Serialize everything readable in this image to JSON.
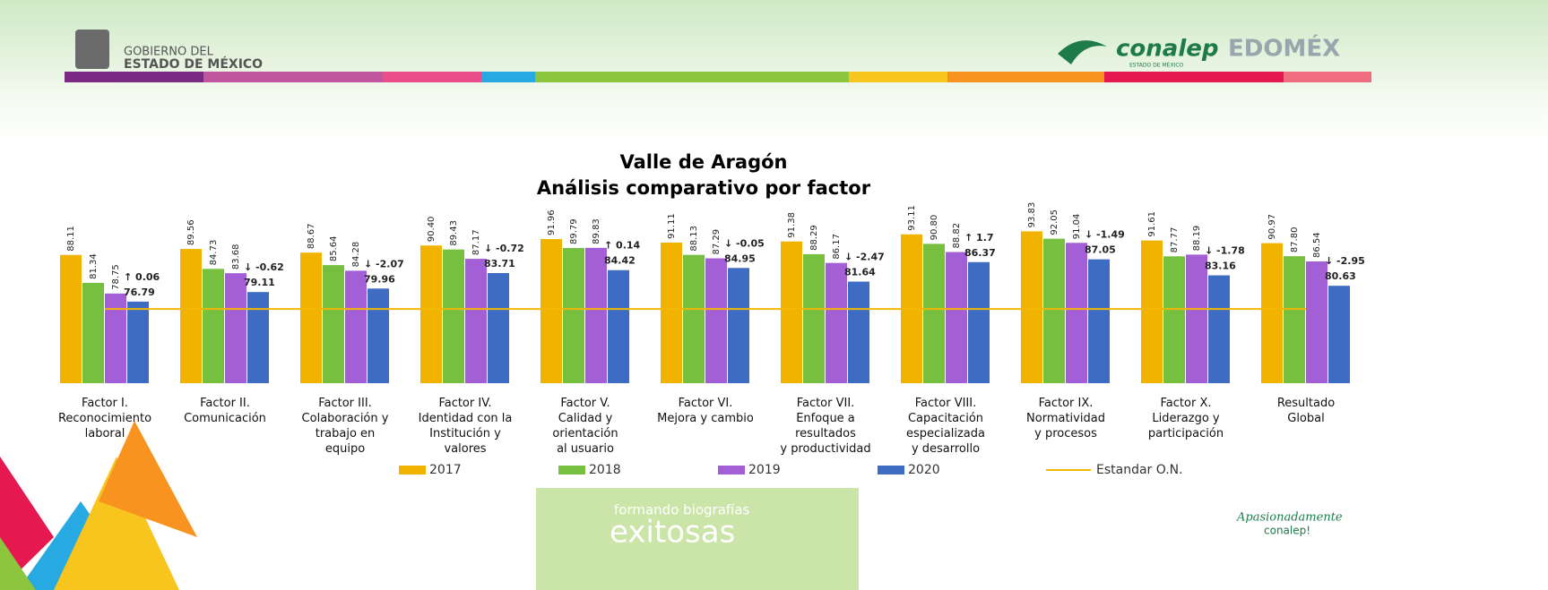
{
  "header": {
    "gov_line1": "GOBIERNO DEL",
    "gov_line2": "ESTADO DE MÉXICO",
    "conalep": "conalep",
    "conalep_sub": "ESTADO DE MÉXICO",
    "edomex": "EDOMÉX"
  },
  "footer": {
    "slogan1": "formando biografías",
    "slogan2": "exitosas",
    "signature1": "Apasionadamente",
    "signature2": "conalep!"
  },
  "chart_data": {
    "type": "bar",
    "title": "Valle de Aragón",
    "subtitle": "Análisis comparativo por factor",
    "categories": [
      "Factor I.\nReconocimiento\nlaboral",
      "Factor II.\nComunicación",
      "Factor III.\nColaboración y\ntrabajo en\nequipo",
      "Factor IV.\nIdentidad con la\nInstitución y\nvalores",
      "Factor V.\nCalidad y\norientación\nal usuario",
      "Factor VI.\nMejora y cambio",
      "Factor VII.\nEnfoque a\nresultados\ny productividad",
      "Factor VIII.\nCapacitación\nespecializada\ny desarrollo",
      "Factor IX.\nNormatividad\ny procesos",
      "Factor X.\nLiderazgo y\nparticipación",
      "Resultado\nGlobal"
    ],
    "series": [
      {
        "name": "2017",
        "color": "#f2b200",
        "values": [
          88.11,
          89.56,
          88.67,
          90.4,
          91.96,
          91.11,
          91.38,
          93.11,
          93.83,
          91.61,
          90.97
        ],
        "value_labels": [
          "88.11",
          "89.56",
          "88.67",
          "90.40",
          "91.96",
          "91.11",
          "91.38",
          "93.11",
          "93.83",
          "91.61",
          "90.97"
        ]
      },
      {
        "name": "2018",
        "color": "#76bf3f",
        "values": [
          81.34,
          84.73,
          85.64,
          89.43,
          89.79,
          88.13,
          88.29,
          90.8,
          92.05,
          87.77,
          87.8
        ],
        "value_labels": [
          "81.34",
          "84.73",
          "85.64",
          "89.43",
          "89.79",
          "88.13",
          "88.29",
          "90.80",
          "92.05",
          "87.77",
          "87.80"
        ]
      },
      {
        "name": "2019",
        "color": "#a35fd6",
        "values": [
          78.75,
          83.68,
          84.28,
          87.17,
          89.83,
          87.29,
          86.17,
          88.82,
          91.04,
          88.19,
          86.54
        ],
        "value_labels": [
          "78.75",
          "83.68",
          "84.28",
          "87.17",
          "89.83",
          "87.29",
          "86.17",
          "88.82",
          "91.04",
          "88.19",
          "86.54"
        ]
      },
      {
        "name": "2020",
        "color": "#3d6cc2",
        "values": [
          76.79,
          79.11,
          79.96,
          83.71,
          84.42,
          84.95,
          81.64,
          86.37,
          87.05,
          83.16,
          80.63
        ],
        "value_labels": [
          "76.79",
          "79.11",
          "79.96",
          "83.71",
          "84.42",
          "84.95",
          "81.64",
          "86.37",
          "87.05",
          "83.16",
          "80.63"
        ]
      }
    ],
    "standard": {
      "name": "Estandar O.N.",
      "color": "#f2b705",
      "value": 75
    },
    "annotations": [
      "↑ 0.06",
      "↓ -0.62",
      "↓ -2.07",
      "↓ -0.72",
      "↑ 0.14",
      "↓ -0.05",
      "↓ -2.47",
      "↑ 1.7",
      "↓ -1.49",
      "↓ -1.78",
      "↓ -2.95"
    ],
    "ylim": [
      57,
      100
    ]
  }
}
